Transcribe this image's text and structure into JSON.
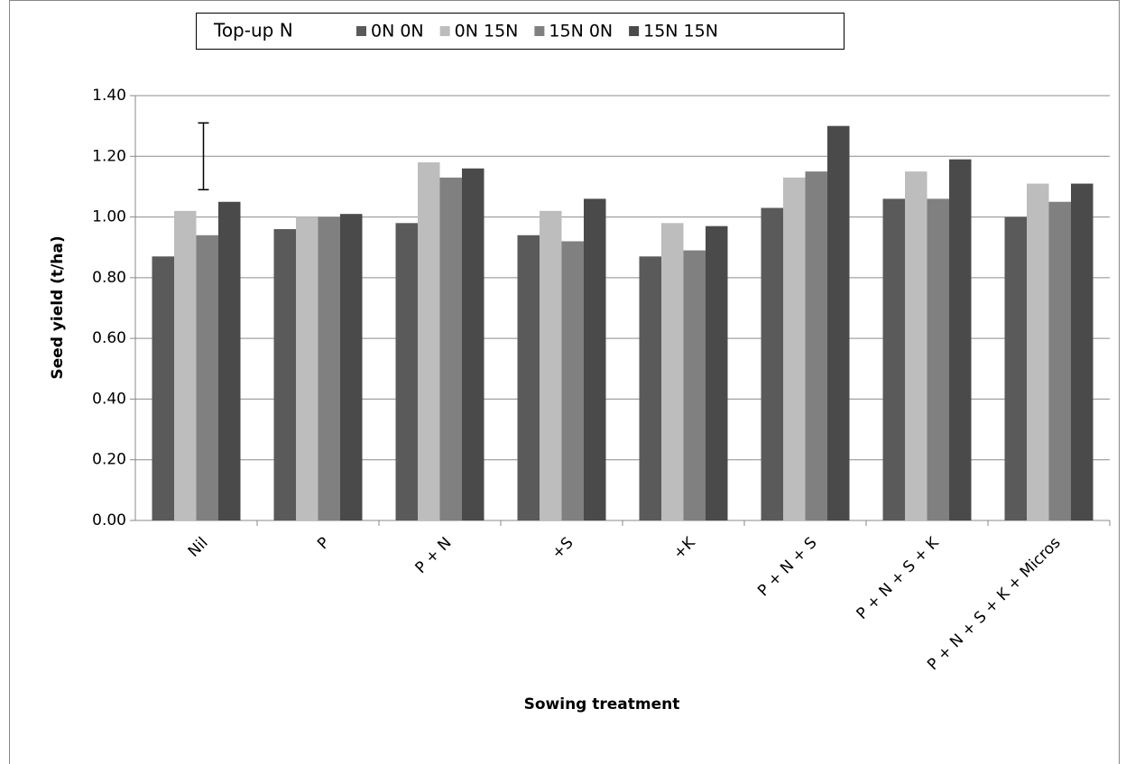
{
  "chart_data": {
    "type": "bar",
    "y_label": "Seed yield (t/ha)",
    "x_label": "Sowing treatment",
    "legend_title": "Top-up N",
    "categories": [
      "Nil",
      "P",
      "P + N",
      "+S",
      "+K",
      "P + N + S",
      "P + N + S + K",
      "P + N + S + K + Micros"
    ],
    "series": [
      {
        "name": "0N 0N",
        "color": "#5a5a5a",
        "values": [
          0.87,
          0.96,
          0.98,
          0.94,
          0.87,
          1.03,
          1.06,
          1.0
        ]
      },
      {
        "name": "0N 15N",
        "color": "#bdbdbd",
        "values": [
          1.02,
          1.0,
          1.18,
          1.02,
          0.98,
          1.13,
          1.15,
          1.11
        ]
      },
      {
        "name": "15N 0N",
        "color": "#808080",
        "values": [
          0.94,
          1.0,
          1.13,
          0.92,
          0.89,
          1.15,
          1.06,
          1.05
        ]
      },
      {
        "name": "15N 15N",
        "color": "#4a4a4a",
        "values": [
          1.05,
          1.01,
          1.16,
          1.06,
          0.97,
          1.3,
          1.19,
          1.11
        ]
      }
    ],
    "error_bar": {
      "value": 1.2,
      "error": 0.11
    },
    "ylim": [
      0,
      1.4
    ],
    "yticks": [
      {
        "value": 0,
        "label": "0.00"
      },
      {
        "value": 0.2,
        "label": "0.20"
      },
      {
        "value": 0.4,
        "label": "0.40"
      },
      {
        "value": 0.6,
        "label": "0.60"
      },
      {
        "value": 0.8,
        "label": "0.80"
      },
      {
        "value": 1.0,
        "label": "1.00"
      },
      {
        "value": 1.2,
        "label": "1.20"
      },
      {
        "value": 1.4,
        "label": "1.40"
      }
    ],
    "grid": true
  }
}
